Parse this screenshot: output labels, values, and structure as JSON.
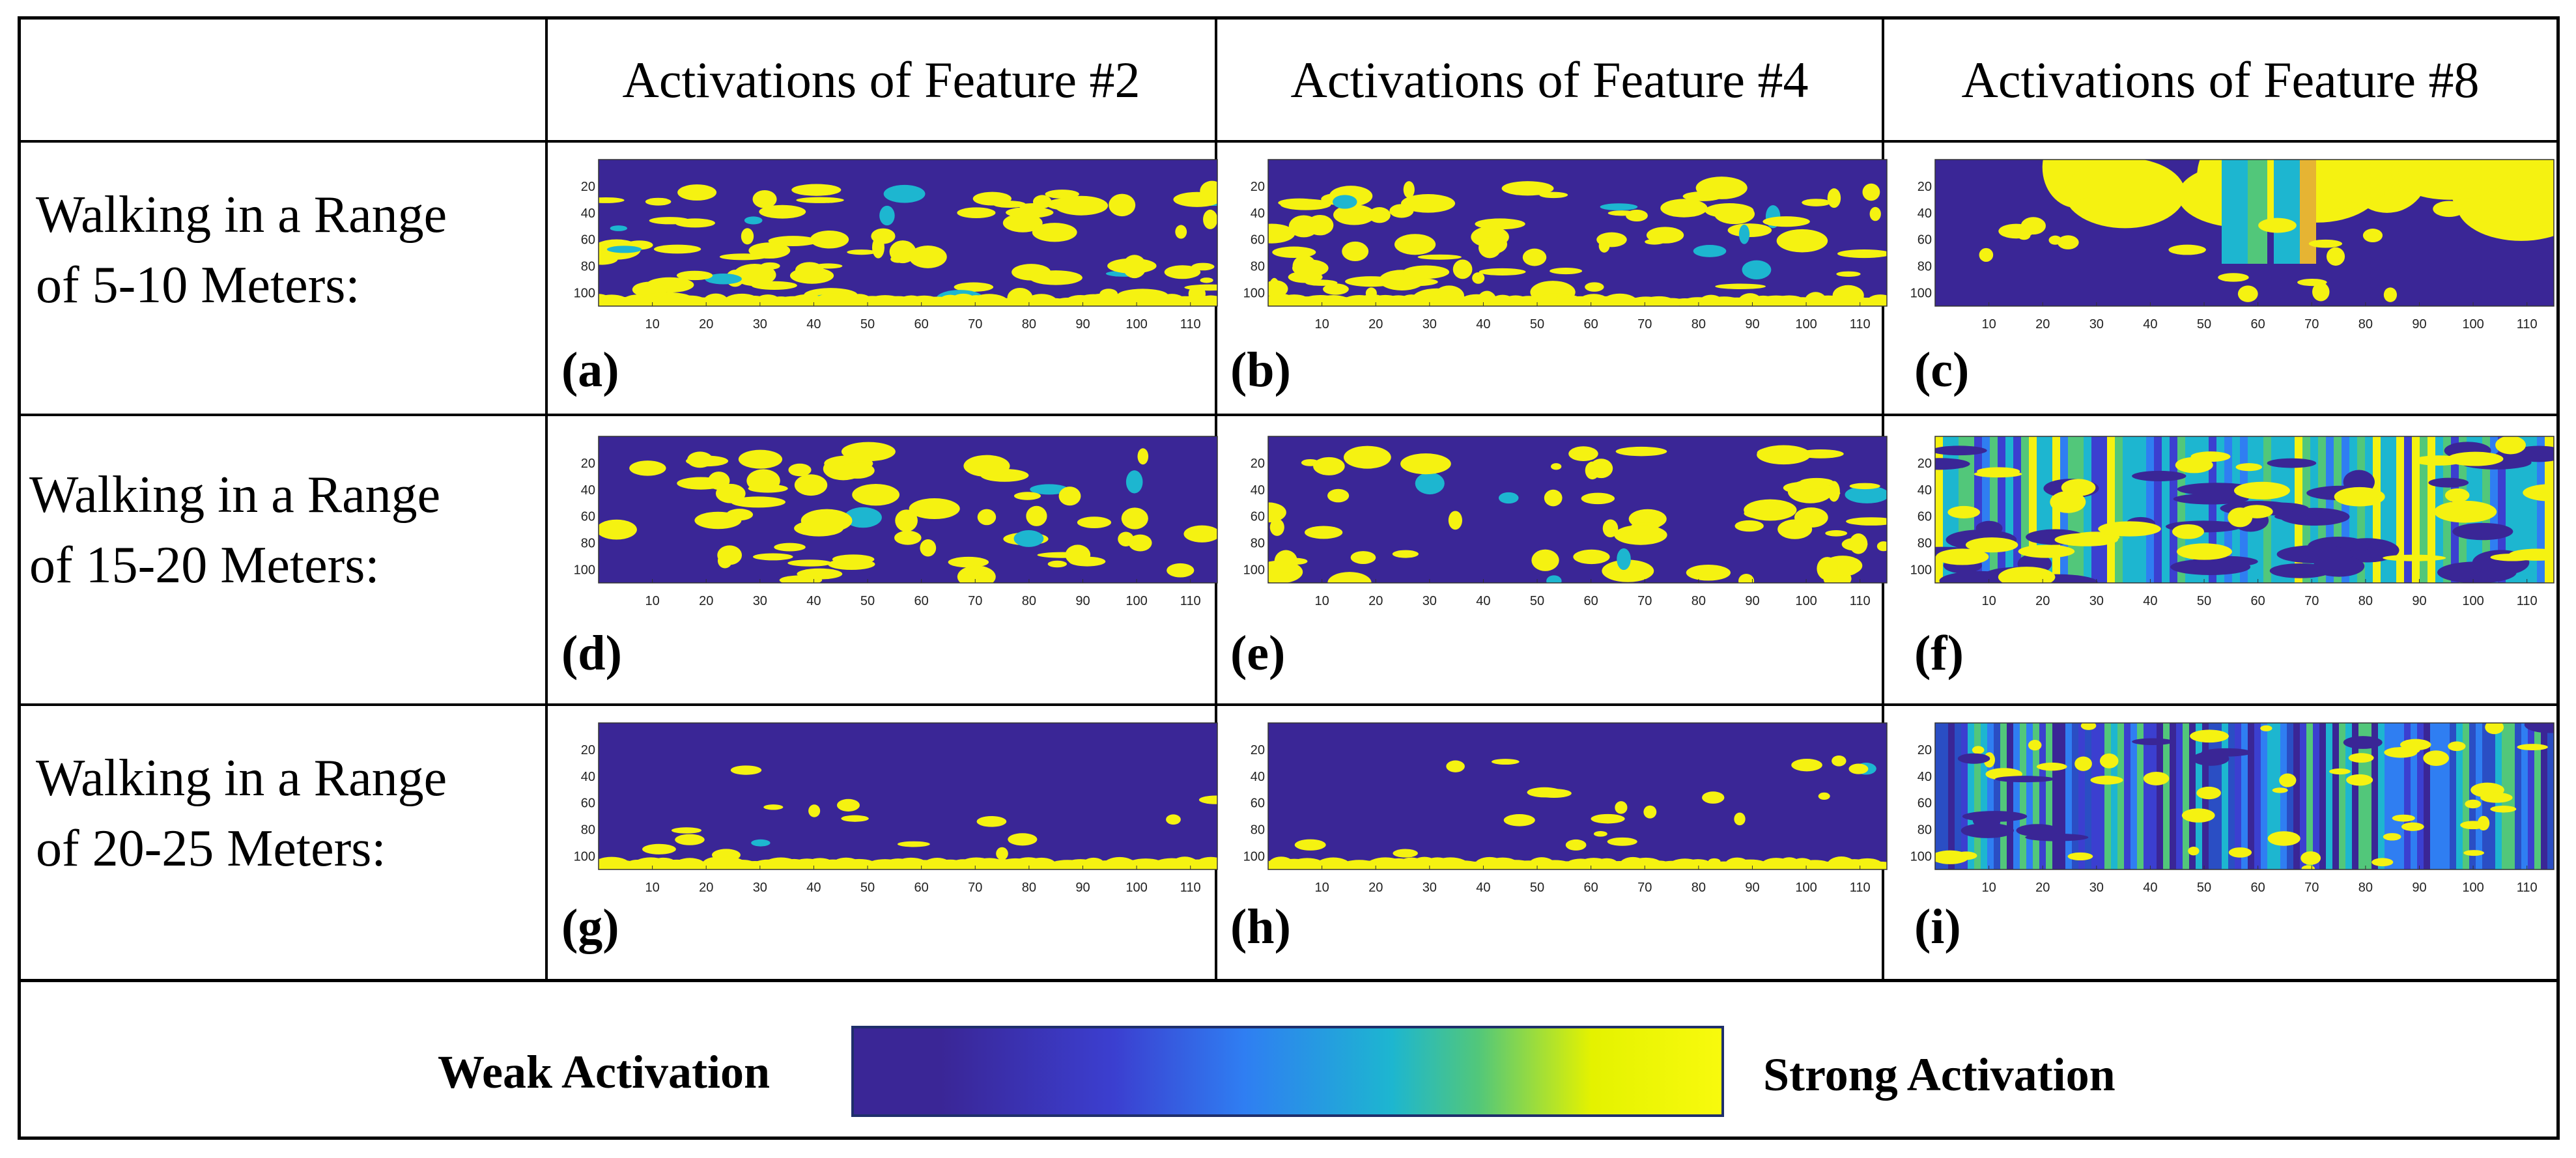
{
  "column_headers": [
    "Activations of Feature #2",
    "Activations of Feature #4",
    "Activations of Feature #8"
  ],
  "rows": [
    {
      "line1": "Walking in a Range",
      "line2": "of 5-10 Meters:"
    },
    {
      "line1": "Walking in a Range",
      "line2": "of 15-20 Meters:"
    },
    {
      "line1": "Walking in a Range",
      "line2": "of 20-25 Meters:"
    }
  ],
  "panel_labels": [
    "(a)",
    "(b)",
    "(c)",
    "(d)",
    "(e)",
    "(f)",
    "(g)",
    "(h)",
    "(i)"
  ],
  "legend": {
    "weak_label": "Weak Activation",
    "strong_label": "Strong Activation",
    "colors": [
      "#3a2696",
      "#3b3fd0",
      "#2f7ef2",
      "#1db6d0",
      "#52c77a",
      "#e4f200",
      "#f8fa0d"
    ]
  },
  "chart_data": {
    "type": "heatmap",
    "x_ticks": [
      10,
      20,
      30,
      40,
      50,
      60,
      70,
      80,
      90,
      100,
      110
    ],
    "y_ticks": [
      20,
      40,
      60,
      80,
      100
    ],
    "xlim": [
      0,
      115
    ],
    "ylim": [
      0,
      110
    ],
    "colormap": "parula",
    "value_range": [
      "Weak Activation",
      "Strong Activation"
    ],
    "panels": [
      {
        "label": "(a)",
        "feature": "#2",
        "range": "5-10 Meters"
      },
      {
        "label": "(b)",
        "feature": "#4",
        "range": "5-10 Meters"
      },
      {
        "label": "(c)",
        "feature": "#8",
        "range": "5-10 Meters"
      },
      {
        "label": "(d)",
        "feature": "#2",
        "range": "15-20 Meters"
      },
      {
        "label": "(e)",
        "feature": "#4",
        "range": "15-20 Meters"
      },
      {
        "label": "(f)",
        "feature": "#8",
        "range": "15-20 Meters"
      },
      {
        "label": "(g)",
        "feature": "#2",
        "range": "20-25 Meters"
      },
      {
        "label": "(h)",
        "feature": "#4",
        "range": "20-25 Meters"
      },
      {
        "label": "(i)",
        "feature": "#8",
        "range": "20-25 Meters"
      }
    ]
  }
}
